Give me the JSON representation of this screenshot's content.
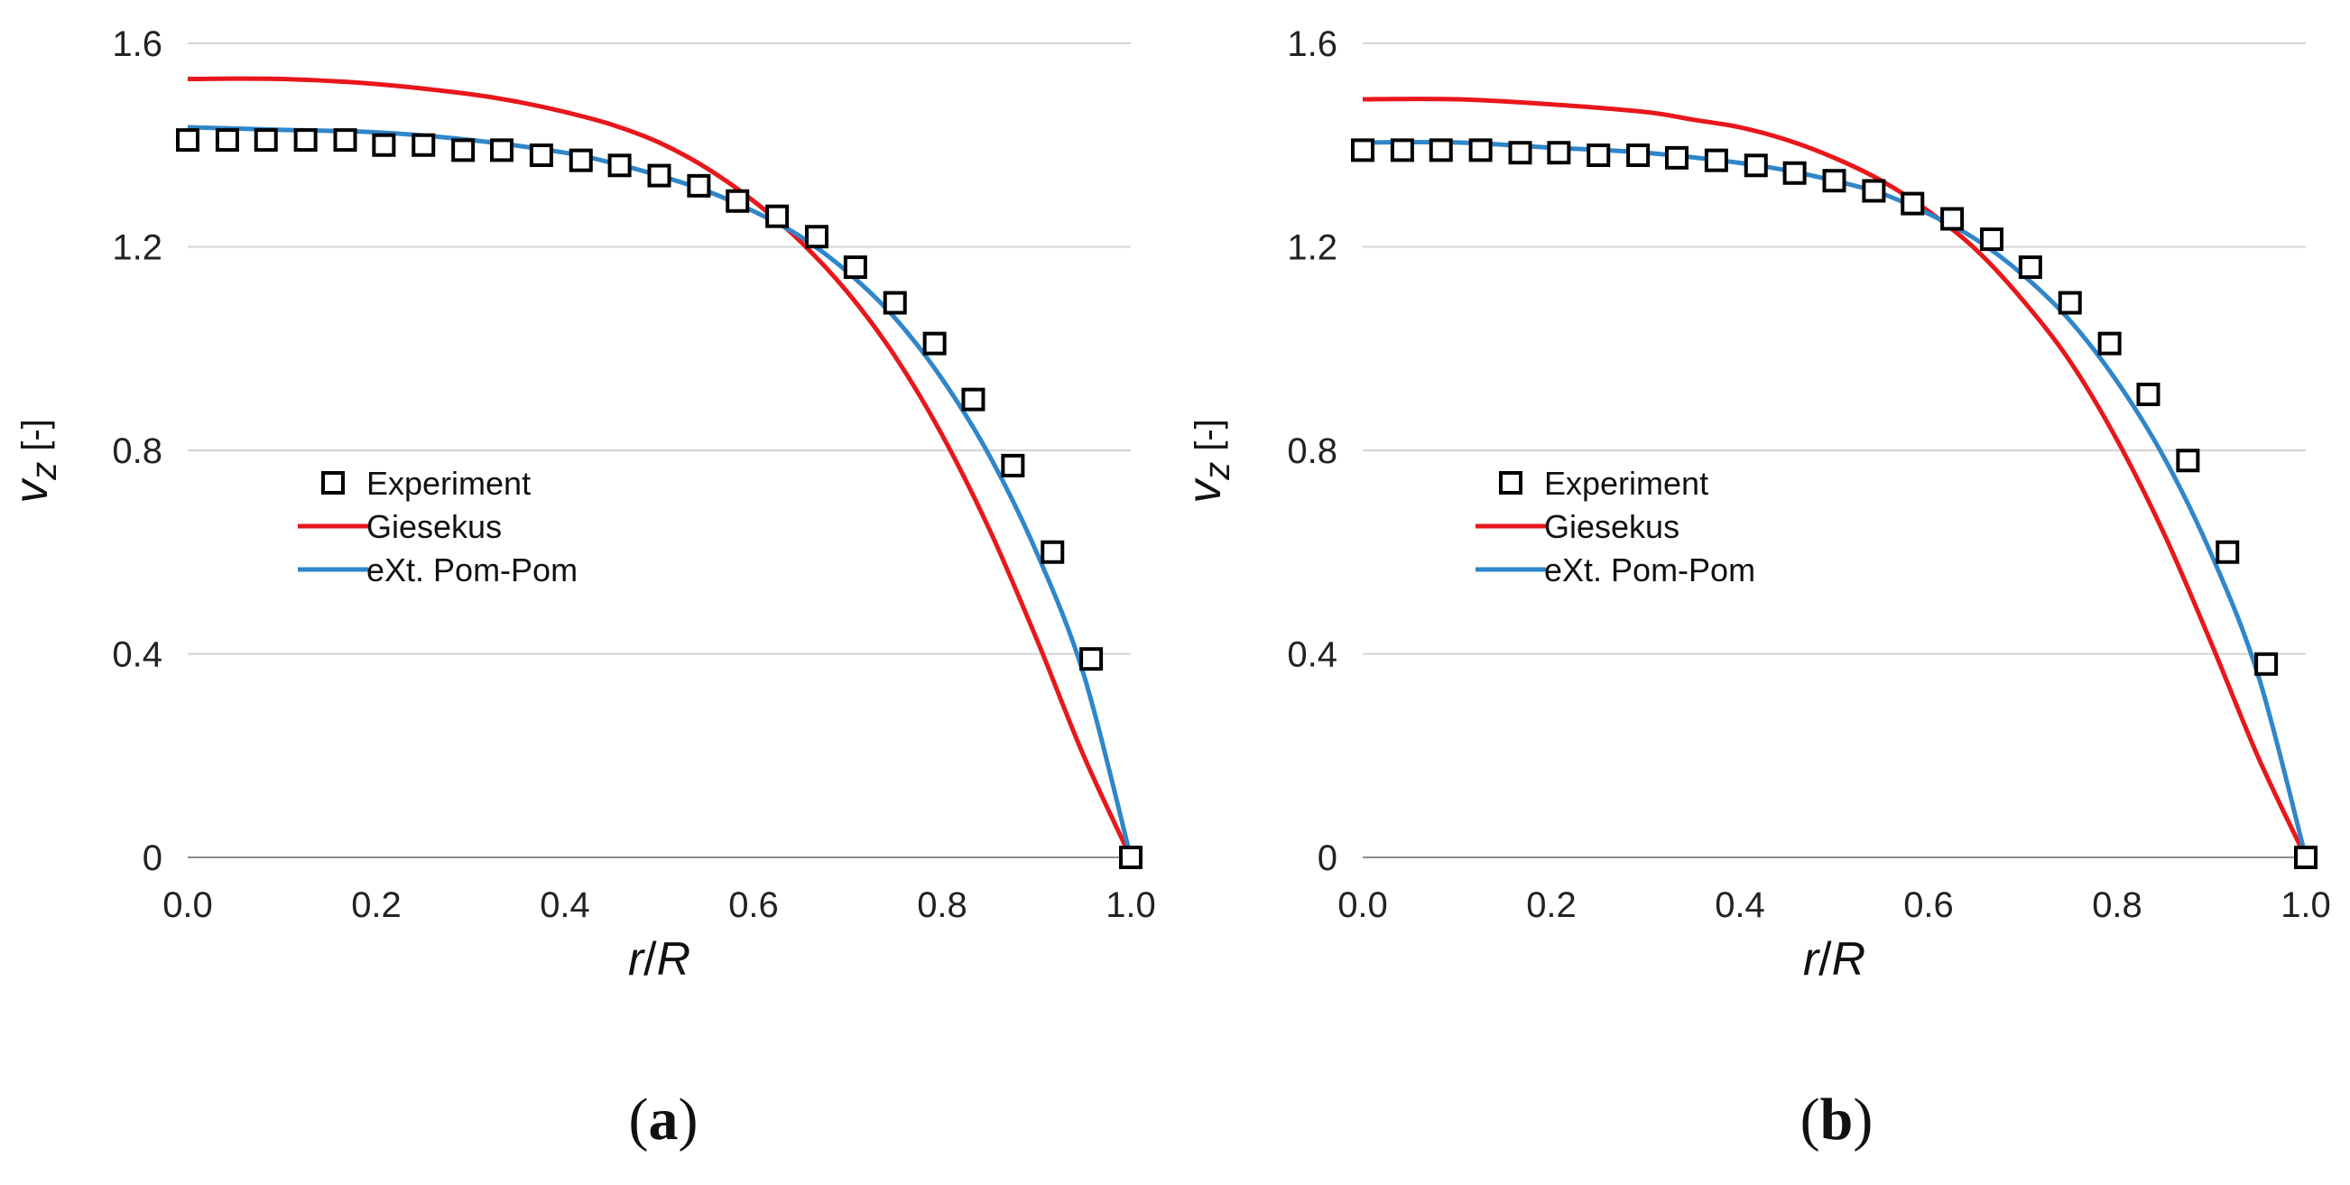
{
  "colors": {
    "experiment": "#000000",
    "giesekus": "#e8171c",
    "pompom": "#2f86c9",
    "grid": "#d4d4d4",
    "axis": "#8c8c8c"
  },
  "chart_data": [
    {
      "type": "line",
      "panel_label": "a",
      "xlabel_var": "r",
      "xlabel_sep": "/",
      "xlabel_ref": "R",
      "ylabel_var": "v",
      "ylabel_sub": "z",
      "ylabel_unit": "[-]",
      "xlim": [
        0.0,
        1.0
      ],
      "ylim": [
        0,
        1.6
      ],
      "xticks": [
        "0.0",
        "0.2",
        "0.4",
        "0.6",
        "0.8",
        "1.0"
      ],
      "yticks": [
        "0",
        "0.4",
        "0.8",
        "1.2",
        "1.6"
      ],
      "legend": [
        "Experiment",
        "Giesekus",
        "eXt. Pom-Pom"
      ],
      "legend_position": "center-left",
      "grid": "horizontal",
      "series": [
        {
          "name": "Experiment",
          "marker": "square",
          "x": [
            0.0,
            0.042,
            0.083,
            0.125,
            0.167,
            0.208,
            0.25,
            0.292,
            0.333,
            0.375,
            0.417,
            0.458,
            0.5,
            0.542,
            0.583,
            0.625,
            0.667,
            0.708,
            0.75,
            0.792,
            0.833,
            0.875,
            0.917,
            0.958,
            1.0
          ],
          "y": [
            1.41,
            1.41,
            1.41,
            1.41,
            1.41,
            1.4,
            1.4,
            1.39,
            1.39,
            1.38,
            1.37,
            1.36,
            1.34,
            1.32,
            1.29,
            1.26,
            1.22,
            1.16,
            1.09,
            1.01,
            0.9,
            0.77,
            0.6,
            0.39,
            0.0
          ]
        },
        {
          "name": "Giesekus",
          "x": [
            0.0,
            0.1,
            0.2,
            0.3,
            0.35,
            0.4,
            0.45,
            0.5,
            0.55,
            0.6,
            0.65,
            0.7,
            0.75,
            0.8,
            0.85,
            0.9,
            0.95,
            1.0
          ],
          "y": [
            1.53,
            1.53,
            1.52,
            1.5,
            1.485,
            1.465,
            1.44,
            1.405,
            1.355,
            1.29,
            1.21,
            1.11,
            0.985,
            0.83,
            0.645,
            0.43,
            0.2,
            0.0
          ]
        },
        {
          "name": "eXt. Pom-Pom",
          "x": [
            0.0,
            0.1,
            0.2,
            0.3,
            0.4,
            0.45,
            0.5,
            0.55,
            0.6,
            0.65,
            0.7,
            0.75,
            0.8,
            0.85,
            0.9,
            0.95,
            1.0
          ],
          "y": [
            1.435,
            1.43,
            1.425,
            1.41,
            1.385,
            1.365,
            1.34,
            1.31,
            1.27,
            1.22,
            1.15,
            1.06,
            0.94,
            0.79,
            0.6,
            0.36,
            0.0
          ]
        }
      ]
    },
    {
      "type": "line",
      "panel_label": "b",
      "xlabel_var": "r",
      "xlabel_sep": "/",
      "xlabel_ref": "R",
      "ylabel_var": "v",
      "ylabel_sub": "z",
      "ylabel_unit": "[-]",
      "xlim": [
        0.0,
        1.0
      ],
      "ylim": [
        0,
        1.6
      ],
      "xticks": [
        "0.0",
        "0.2",
        "0.4",
        "0.6",
        "0.8",
        "1.0"
      ],
      "yticks": [
        "0",
        "0.4",
        "0.8",
        "1.2",
        "1.6"
      ],
      "legend": [
        "Experiment",
        "Giesekus",
        "eXt. Pom-Pom"
      ],
      "legend_position": "center-left",
      "grid": "horizontal",
      "series": [
        {
          "name": "Experiment",
          "marker": "square",
          "x": [
            0.0,
            0.042,
            0.083,
            0.125,
            0.167,
            0.208,
            0.25,
            0.292,
            0.333,
            0.375,
            0.417,
            0.458,
            0.5,
            0.542,
            0.583,
            0.625,
            0.667,
            0.708,
            0.75,
            0.792,
            0.833,
            0.875,
            0.917,
            0.958,
            1.0
          ],
          "y": [
            1.39,
            1.39,
            1.39,
            1.39,
            1.385,
            1.385,
            1.38,
            1.38,
            1.375,
            1.37,
            1.36,
            1.345,
            1.33,
            1.31,
            1.285,
            1.255,
            1.215,
            1.16,
            1.09,
            1.01,
            0.91,
            0.78,
            0.6,
            0.38,
            0.0
          ]
        },
        {
          "name": "Giesekus",
          "x": [
            0.0,
            0.1,
            0.2,
            0.3,
            0.35,
            0.4,
            0.45,
            0.5,
            0.55,
            0.6,
            0.65,
            0.7,
            0.75,
            0.8,
            0.85,
            0.9,
            0.95,
            1.0
          ],
          "y": [
            1.49,
            1.49,
            1.48,
            1.465,
            1.45,
            1.435,
            1.41,
            1.375,
            1.33,
            1.27,
            1.195,
            1.095,
            0.975,
            0.82,
            0.635,
            0.42,
            0.195,
            0.0
          ]
        },
        {
          "name": "eXt. Pom-Pom",
          "x": [
            0.0,
            0.1,
            0.2,
            0.3,
            0.4,
            0.45,
            0.5,
            0.55,
            0.6,
            0.65,
            0.7,
            0.75,
            0.8,
            0.85,
            0.9,
            0.95,
            1.0
          ],
          "y": [
            1.405,
            1.405,
            1.395,
            1.385,
            1.365,
            1.35,
            1.33,
            1.305,
            1.265,
            1.215,
            1.145,
            1.055,
            0.935,
            0.785,
            0.595,
            0.355,
            0.0
          ]
        }
      ]
    }
  ]
}
